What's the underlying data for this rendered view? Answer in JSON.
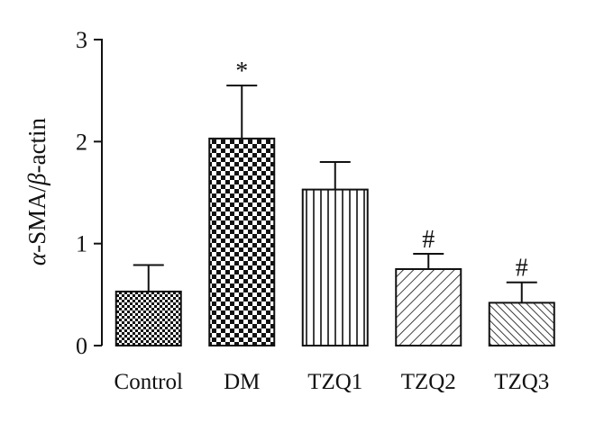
{
  "chart_data": {
    "type": "bar",
    "title": "",
    "xlabel": "",
    "ylabel": "α-SMA/β-actin",
    "ylabel_parts": {
      "alpha": "α",
      "mid": "-SMA/",
      "beta": "β",
      "end": "-actin"
    },
    "categories": [
      "Control",
      "DM",
      "TZQ1",
      "TZQ2",
      "TZQ3"
    ],
    "values": [
      0.53,
      2.03,
      1.53,
      0.75,
      0.42
    ],
    "errors": [
      0.26,
      0.52,
      0.27,
      0.15,
      0.2
    ],
    "annotations": [
      "",
      "*",
      "",
      "#",
      "#"
    ],
    "patterns": [
      "fine-check",
      "checkerboard",
      "vertical-lines",
      "diagonal-lines",
      "diagonal-lines-dense"
    ],
    "ylim": [
      0,
      3
    ],
    "yticks": [
      0,
      1,
      2,
      3
    ],
    "grid": false
  }
}
